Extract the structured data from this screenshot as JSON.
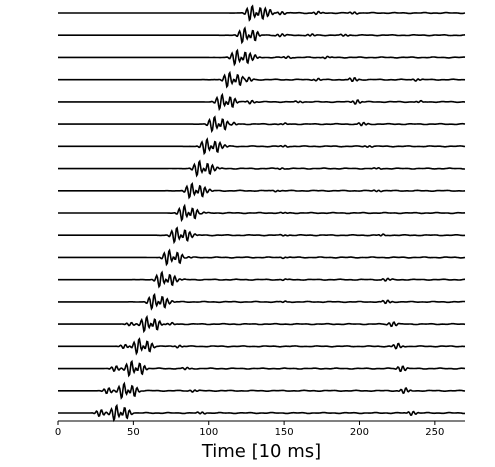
{
  "chart_data": {
    "type": "line",
    "title": "",
    "xlabel": "Time [10 ms]",
    "ylabel": "",
    "xlim": [
      0,
      270
    ],
    "xticks": [
      0,
      50,
      100,
      150,
      200,
      250
    ],
    "grid": false,
    "legend": "none",
    "line_color": "#000000",
    "series": [
      {
        "arrival": 128,
        "late": [
          [
            140,
            2.2
          ],
          [
            148,
            1.2
          ],
          [
            172,
            1.0
          ],
          [
            196,
            0.8
          ]
        ]
      },
      {
        "arrival": 123,
        "late": [
          [
            148,
            1.1
          ],
          [
            168,
            0.8
          ],
          [
            190,
            0.7
          ]
        ]
      },
      {
        "arrival": 118,
        "late": [
          [
            130,
            1.5
          ],
          [
            152,
            0.8
          ],
          [
            178,
            0.7
          ]
        ]
      },
      {
        "arrival": 113,
        "late": [
          [
            126,
            1.8
          ],
          [
            172,
            0.8
          ],
          [
            196,
            1.5
          ],
          [
            238,
            0.8
          ]
        ]
      },
      {
        "arrival": 108,
        "late": [
          [
            128,
            1.2
          ],
          [
            160,
            0.6
          ],
          [
            198,
            1.5
          ],
          [
            240,
            0.6
          ]
        ]
      },
      {
        "arrival": 103,
        "late": [
          [
            116,
            1.0
          ],
          [
            150,
            0.5
          ],
          [
            202,
            1.2
          ]
        ]
      },
      {
        "arrival": 98,
        "late": [
          [
            110,
            0.9
          ],
          [
            150,
            0.6
          ],
          [
            206,
            0.6
          ]
        ]
      },
      {
        "arrival": 93,
        "late": [
          [
            105,
            0.8
          ],
          [
            148,
            0.5
          ],
          [
            212,
            0.5
          ]
        ]
      },
      {
        "arrival": 88,
        "late": [
          [
            100,
            0.8
          ],
          [
            145,
            0.5
          ],
          [
            212,
            0.6
          ]
        ]
      },
      {
        "arrival": 83,
        "late": [
          [
            96,
            0.6
          ],
          [
            150,
            0.4
          ]
        ]
      },
      {
        "arrival": 78,
        "late": [
          [
            90,
            0.7
          ],
          [
            150,
            0.4
          ],
          [
            215,
            0.6
          ]
        ]
      },
      {
        "arrival": 73,
        "late": [
          [
            86,
            0.6
          ],
          [
            150,
            0.4
          ]
        ]
      },
      {
        "arrival": 68,
        "late": [
          [
            80,
            0.6
          ],
          [
            150,
            0.4
          ],
          [
            218,
            1.0
          ]
        ]
      },
      {
        "arrival": 63,
        "late": [
          [
            75,
            0.6
          ],
          [
            150,
            0.4
          ],
          [
            218,
            1.2
          ]
        ]
      },
      {
        "arrival": 58,
        "late": [
          [
            48,
            1.2
          ],
          [
            75,
            0.8
          ],
          [
            222,
            1.8
          ]
        ]
      },
      {
        "arrival": 53,
        "late": [
          [
            44,
            1.5
          ],
          [
            80,
            0.8
          ],
          [
            225,
            2.0
          ]
        ]
      },
      {
        "arrival": 48,
        "late": [
          [
            38,
            2.0
          ],
          [
            85,
            0.8
          ],
          [
            228,
            2.2
          ]
        ]
      },
      {
        "arrival": 43,
        "late": [
          [
            33,
            2.2
          ],
          [
            90,
            0.8
          ],
          [
            230,
            2.0
          ]
        ]
      },
      {
        "arrival": 38,
        "late": [
          [
            28,
            2.5
          ],
          [
            95,
            0.8
          ],
          [
            235,
            1.5
          ]
        ]
      }
    ]
  }
}
